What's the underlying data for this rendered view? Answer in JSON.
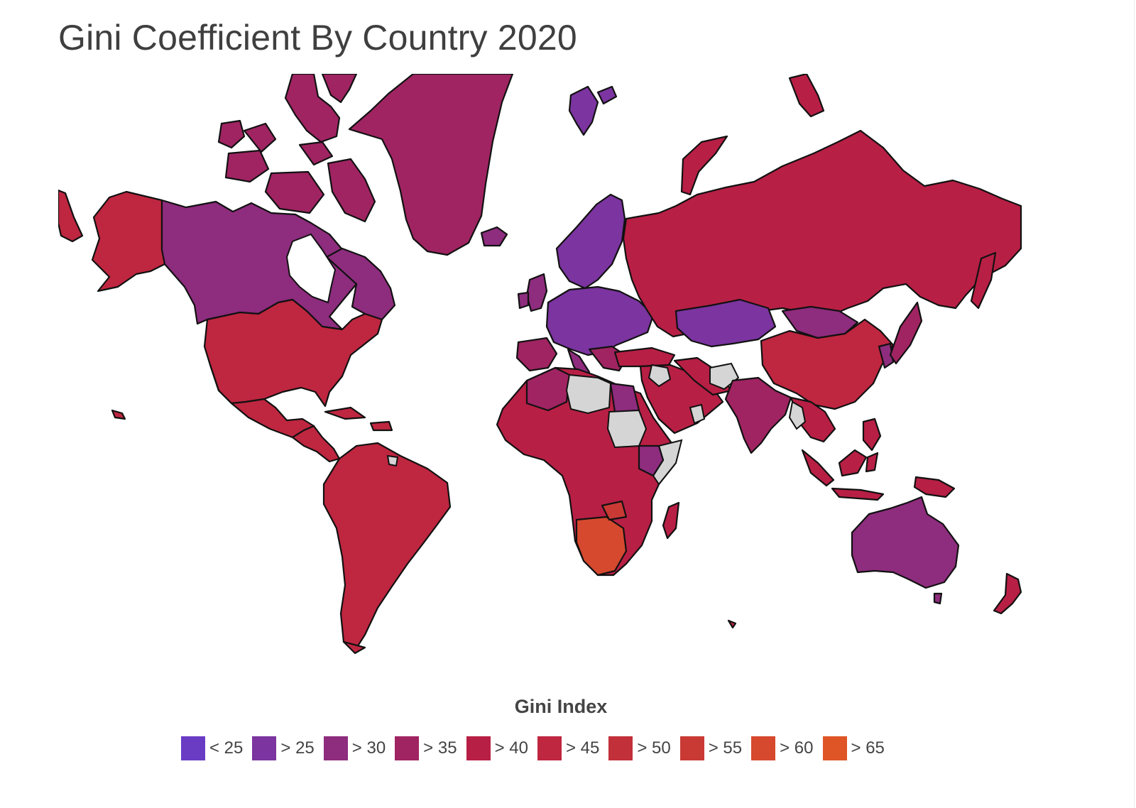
{
  "title": "Gini Coefficient By Country 2020",
  "legend": {
    "title": "Gini Index",
    "items": [
      {
        "label": "< 25",
        "color": "#6a3cc4"
      },
      {
        "label": "> 25",
        "color": "#7b34a0"
      },
      {
        "label": "> 30",
        "color": "#8e2c7e"
      },
      {
        "label": "> 35",
        "color": "#a02462"
      },
      {
        "label": "> 40",
        "color": "#b81f45"
      },
      {
        "label": "> 45",
        "color": "#bf2640"
      },
      {
        "label": "> 50",
        "color": "#c2303a"
      },
      {
        "label": "> 55",
        "color": "#c93a34"
      },
      {
        "label": "> 60",
        "color": "#d6492e"
      },
      {
        "label": "> 65",
        "color": "#df5526"
      }
    ]
  },
  "no_data_color": "#d5d5d5"
}
